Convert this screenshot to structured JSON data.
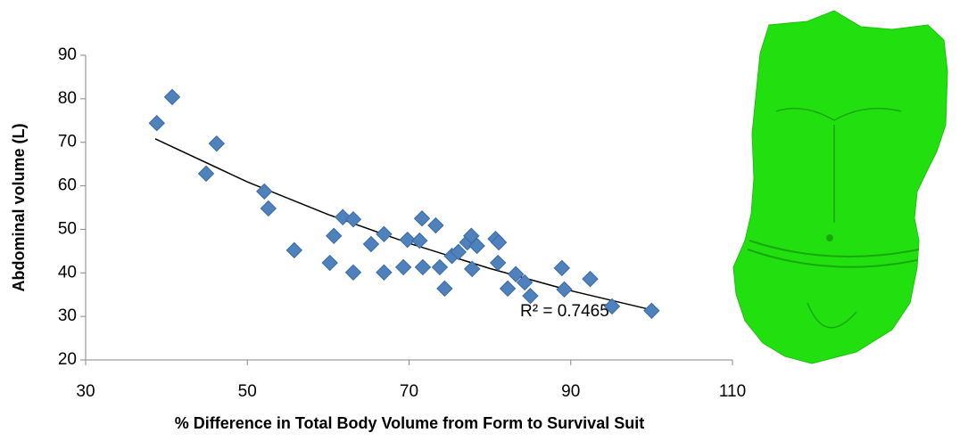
{
  "chart_data": {
    "type": "scatter",
    "x_label": "% Difference in Total Body Volume from Form to Survival Suit",
    "y_label": "Abdominal volume (L)",
    "annotation": "R² = 0.7465",
    "color": "#4f81bd",
    "trendline_color": "#000000",
    "xlim": [
      30,
      110
    ],
    "ylim": [
      20,
      90
    ],
    "xticks": [
      30,
      50,
      70,
      90,
      110
    ],
    "yticks": [
      20,
      30,
      40,
      50,
      60,
      70,
      80,
      90
    ],
    "grid": false,
    "x": [
      38.8,
      40.7,
      44.9,
      46.2,
      52.1,
      52.6,
      55.8,
      60.2,
      60.7,
      61.8,
      63.1,
      63.1,
      65.3,
      66.9,
      66.9,
      69.3,
      69.8,
      71.3,
      71.6,
      71.7,
      73.3,
      73.8,
      74.4,
      75.3,
      76.1,
      77.2,
      77.7,
      77.8,
      78.4,
      80.7,
      81.1,
      81.0,
      82.2,
      83.2,
      84.3,
      85.0,
      88.9,
      89.2,
      92.4,
      95.1,
      100.0
    ],
    "values": [
      74.4,
      80.4,
      62.8,
      69.7,
      58.7,
      54.8,
      45.2,
      42.3,
      48.5,
      52.8,
      40.1,
      52.3,
      46.6,
      48.9,
      40.1,
      41.3,
      47.6,
      47.4,
      52.5,
      41.3,
      50.9,
      41.3,
      36.4,
      43.9,
      44.8,
      47.0,
      48.5,
      40.9,
      46.2,
      47.8,
      47.0,
      42.3,
      36.4,
      39.7,
      37.8,
      34.7,
      41.1,
      36.2,
      38.6,
      32.3,
      31.3
    ],
    "trendline": {
      "x": [
        38.6,
        50,
        60,
        70,
        80,
        90,
        100
      ],
      "y": [
        70.8,
        60.9,
        53.4,
        46.8,
        41.0,
        35.9,
        31.5
      ]
    }
  }
}
